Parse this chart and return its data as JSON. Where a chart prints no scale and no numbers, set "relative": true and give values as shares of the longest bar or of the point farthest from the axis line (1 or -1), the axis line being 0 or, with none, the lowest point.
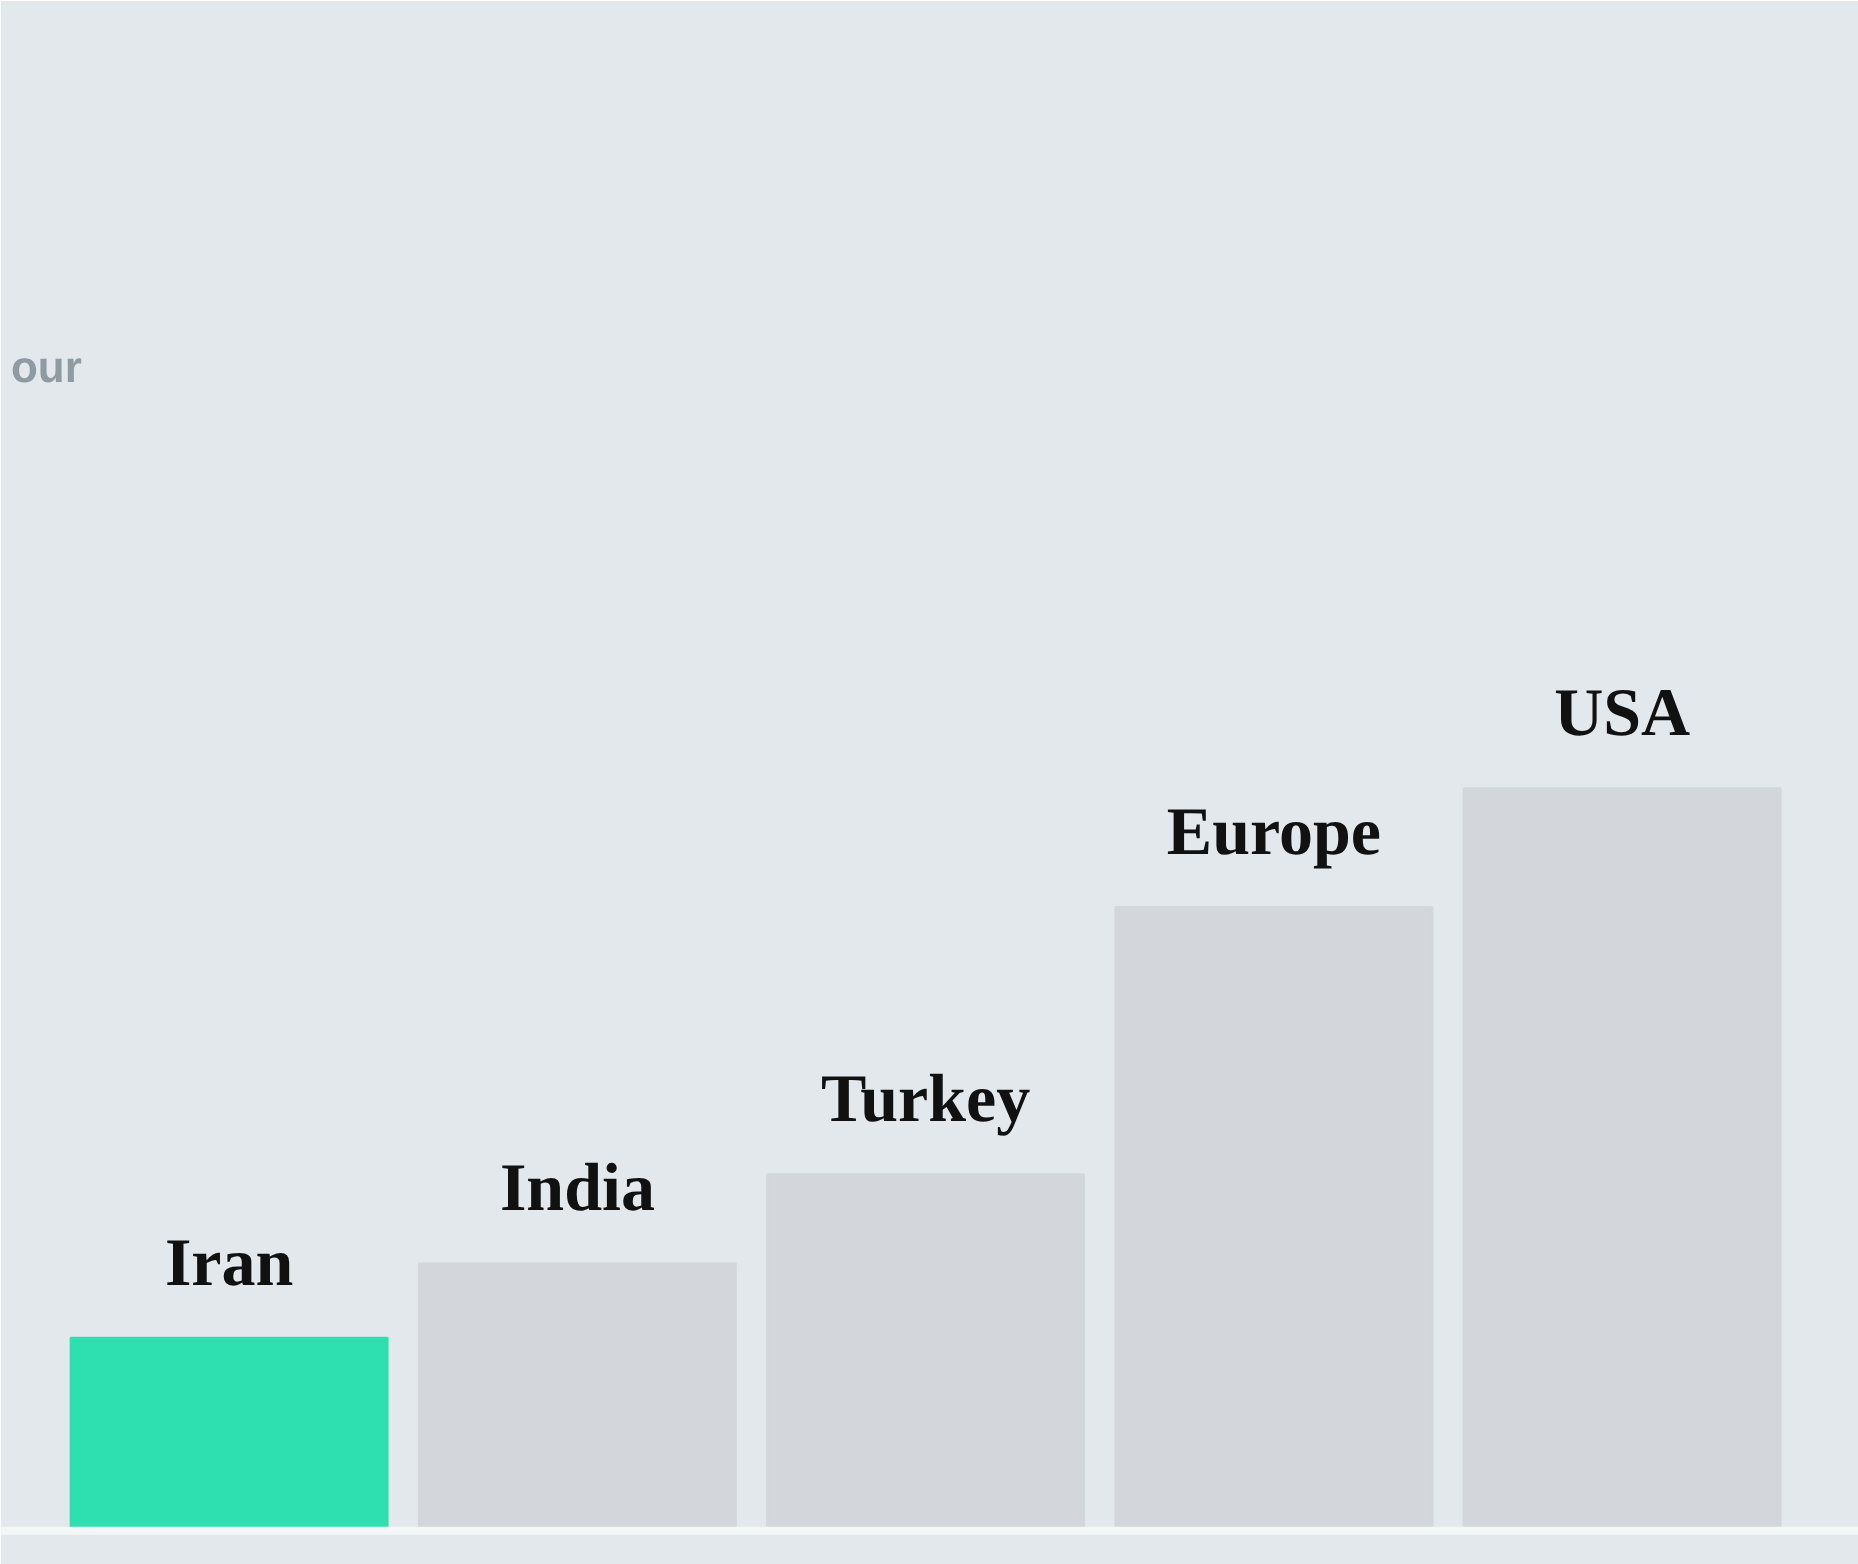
{
  "chart_data": {
    "type": "bar",
    "relative": true,
    "categories": [
      "Iran",
      "India",
      "Turkey",
      "Europe",
      "USA"
    ],
    "values": [
      0.26,
      0.36,
      0.48,
      0.84,
      1.0
    ],
    "colors": [
      "#2ee0b0",
      "#d3d6da",
      "#d3d6da",
      "#d3d6da",
      "#d3d6da"
    ],
    "annotations": [
      "our"
    ],
    "grid": false
  }
}
